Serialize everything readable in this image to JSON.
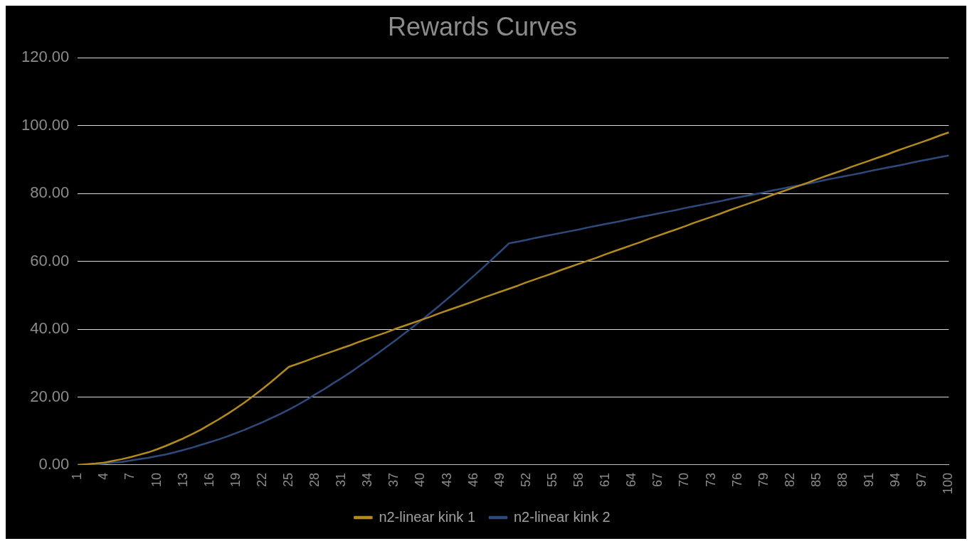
{
  "chart_data": {
    "type": "line",
    "title": "Rewards Curves",
    "categories": [
      "1",
      null,
      null,
      "4",
      null,
      null,
      "7",
      null,
      null,
      "10",
      null,
      null,
      "13",
      null,
      null,
      "16",
      null,
      null,
      "19",
      null,
      null,
      "22",
      null,
      null,
      "25",
      null,
      null,
      "28",
      null,
      null,
      "31",
      null,
      null,
      "34",
      null,
      null,
      "37",
      null,
      null,
      "40",
      null,
      null,
      "43",
      null,
      null,
      "46",
      null,
      null,
      "49",
      null,
      null,
      "52",
      null,
      null,
      "55",
      null,
      null,
      "58",
      null,
      null,
      "61",
      null,
      null,
      "64",
      null,
      null,
      "67",
      null,
      null,
      "70",
      null,
      null,
      "73",
      null,
      null,
      "76",
      null,
      null,
      "79",
      null,
      null,
      "82",
      null,
      null,
      "85",
      null,
      null,
      "88",
      null,
      null,
      "91",
      null,
      null,
      "94",
      null,
      null,
      "97",
      null,
      null,
      "100"
    ],
    "series": [
      {
        "name": "n2-linear kink 1",
        "color": "#b38a1d",
        "values": [
          0.0,
          0.2,
          0.4,
          0.7,
          1.2,
          1.7,
          2.3,
          3.0,
          3.7,
          4.6,
          5.6,
          6.7,
          7.8,
          9.1,
          10.4,
          11.9,
          13.4,
          15.0,
          16.7,
          18.5,
          20.4,
          22.4,
          24.5,
          26.7,
          28.9,
          29.8,
          30.7,
          31.7,
          32.6,
          33.5,
          34.4,
          35.3,
          36.3,
          37.2,
          38.1,
          39.0,
          40.0,
          40.9,
          41.8,
          42.7,
          43.6,
          44.6,
          45.5,
          46.4,
          47.3,
          48.2,
          49.2,
          50.1,
          51.0,
          51.9,
          52.8,
          53.8,
          54.7,
          55.6,
          56.5,
          57.5,
          58.4,
          59.3,
          60.2,
          61.1,
          62.1,
          63.0,
          63.9,
          64.8,
          65.7,
          66.7,
          67.6,
          68.5,
          69.4,
          70.3,
          71.3,
          72.2,
          73.1,
          74.0,
          75.0,
          75.9,
          76.8,
          77.7,
          78.6,
          79.6,
          80.5,
          81.4,
          82.3,
          83.2,
          84.2,
          85.1,
          86.0,
          86.9,
          87.9,
          88.8,
          89.7,
          90.6,
          91.5,
          92.5,
          93.4,
          94.3,
          95.2,
          96.1,
          97.1,
          98.0
        ]
      },
      {
        "name": "n2-linear kink 2",
        "color": "#2e4a7d",
        "values": [
          0.0,
          0.1,
          0.2,
          0.4,
          0.7,
          0.9,
          1.3,
          1.7,
          2.1,
          2.6,
          3.1,
          3.7,
          4.4,
          5.1,
          5.9,
          6.7,
          7.5,
          8.4,
          9.4,
          10.4,
          11.5,
          12.6,
          13.8,
          15.0,
          16.3,
          17.7,
          19.2,
          20.8,
          22.3,
          24.0,
          25.6,
          27.3,
          29.1,
          30.9,
          32.7,
          34.6,
          36.5,
          38.5,
          40.5,
          42.5,
          44.6,
          46.7,
          48.9,
          51.1,
          53.4,
          55.7,
          58.0,
          60.4,
          62.8,
          65.3,
          65.8,
          66.3,
          66.9,
          67.4,
          67.9,
          68.4,
          68.9,
          69.4,
          70.0,
          70.5,
          71.0,
          71.5,
          72.0,
          72.6,
          73.1,
          73.6,
          74.1,
          74.6,
          75.1,
          75.7,
          76.2,
          76.7,
          77.2,
          77.7,
          78.3,
          78.8,
          79.3,
          79.8,
          80.3,
          80.9,
          81.4,
          81.9,
          82.4,
          82.9,
          83.4,
          84.0,
          84.5,
          85.0,
          85.5,
          86.0,
          86.6,
          87.1,
          87.6,
          88.1,
          88.6,
          89.2,
          89.7,
          90.2,
          90.7,
          91.2
        ]
      }
    ],
    "ylim": [
      0,
      120
    ],
    "yticks": [
      {
        "value": 0,
        "label": "0.00"
      },
      {
        "value": 20,
        "label": "20.00"
      },
      {
        "value": 40,
        "label": "40.00"
      },
      {
        "value": 60,
        "label": "60.00"
      },
      {
        "value": 80,
        "label": "80.00"
      },
      {
        "value": 100,
        "label": "100.00"
      },
      {
        "value": 120,
        "label": "120.00"
      }
    ],
    "grid": "y",
    "legend": "bottom",
    "marker": "none",
    "line_style": "solid"
  }
}
